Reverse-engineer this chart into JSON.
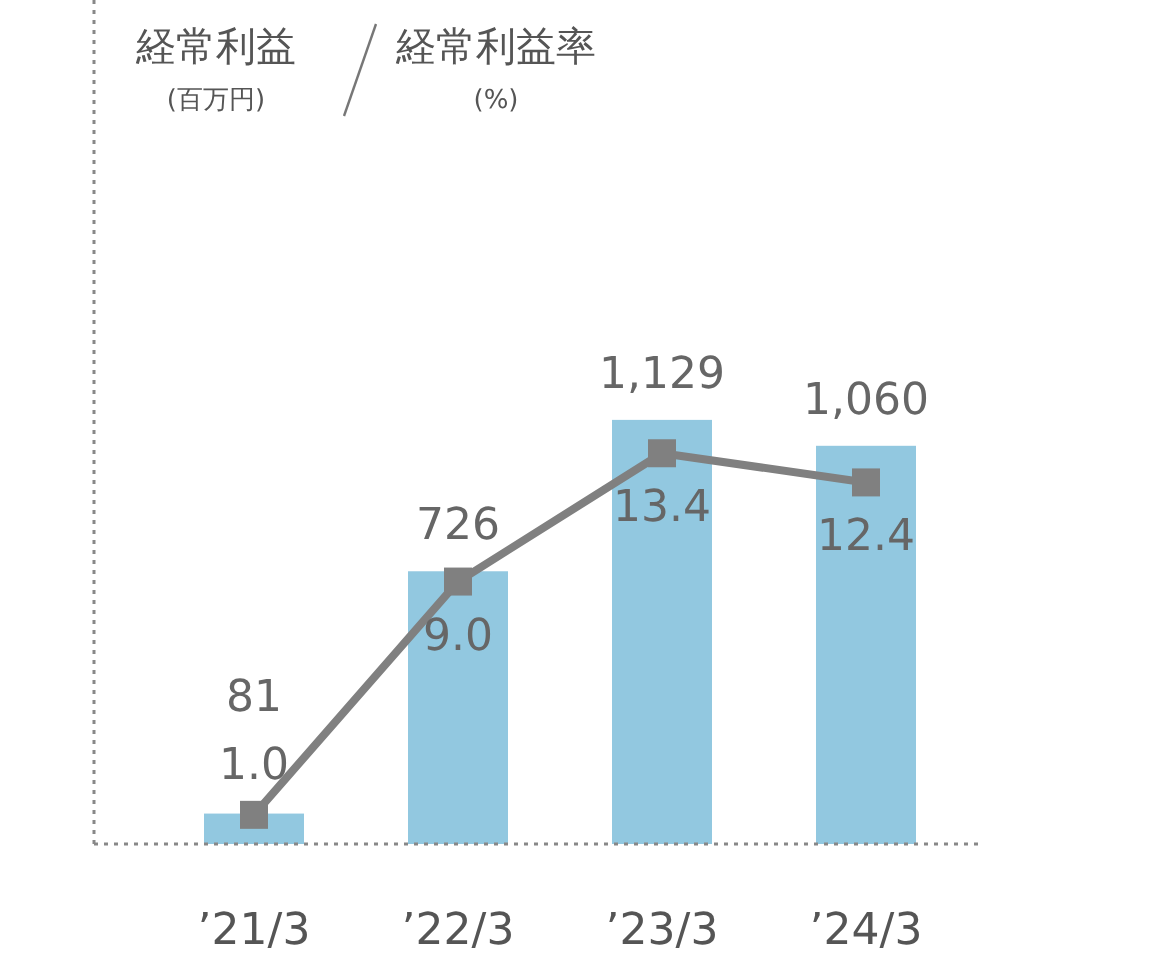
{
  "chart_data": {
    "type": "bar",
    "annotations": [
      "経常利益\n(百万円)",
      "経常利益率\n(%)"
    ],
    "categories": [
      "’21/3",
      "’22/3",
      "’23/3",
      "’24/3"
    ],
    "series": [
      {
        "color": "#92c8e0",
        "values": [
          81,
          726,
          1129,
          1060
        ],
        "value_labels": [
          "81",
          "726",
          "1,129",
          "1,060"
        ]
      },
      {
        "type": "line",
        "axis": "y2",
        "color": "#808080",
        "marker": "square",
        "values": [
          1.0,
          9.0,
          13.4,
          12.4
        ],
        "value_labels": [
          "1.0",
          "9.0",
          "13.4",
          "12.4"
        ]
      }
    ]
  }
}
